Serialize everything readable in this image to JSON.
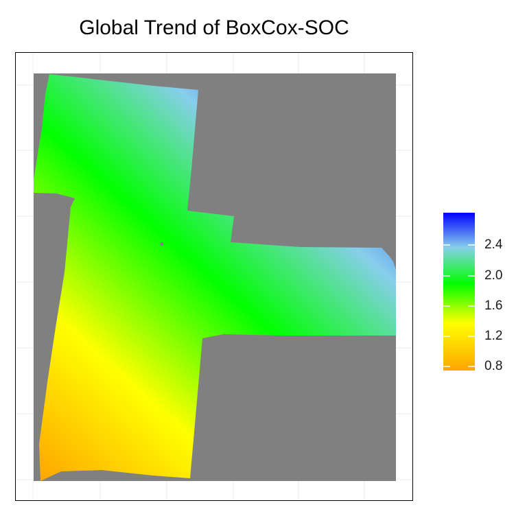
{
  "chart_data": {
    "type": "heatmap",
    "title": "Global Trend of BoxCox-SOC",
    "xlabel": "",
    "ylabel": "",
    "grid": true,
    "legend": {
      "placement": "right",
      "breaks": [
        "2.4",
        "2.0",
        "1.6",
        "1.2",
        "0.8"
      ],
      "range": [
        0.7,
        2.85
      ],
      "colors": [
        "#ffa500",
        "#ffff00",
        "#00ff00",
        "#87ceeb",
        "#0000ff"
      ]
    },
    "na_color": "#808080",
    "trend": {
      "low_corner": "bottom-left",
      "high_corner": "top-right",
      "min_value": 0.7,
      "max_value": 2.85
    }
  }
}
